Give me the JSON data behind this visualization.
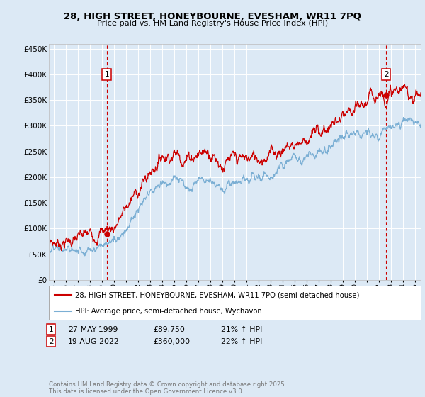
{
  "title_line1": "28, HIGH STREET, HONEYBOURNE, EVESHAM, WR11 7PQ",
  "title_line2": "Price paid vs. HM Land Registry's House Price Index (HPI)",
  "background_color": "#dce9f5",
  "plot_bg_color": "#dce9f5",
  "grid_color": "#ffffff",
  "red_color": "#cc0000",
  "blue_color": "#7bafd4",
  "ylim": [
    0,
    460000
  ],
  "yticks": [
    0,
    50000,
    100000,
    150000,
    200000,
    250000,
    300000,
    350000,
    400000,
    450000
  ],
  "ytick_labels": [
    "£0",
    "£50K",
    "£100K",
    "£150K",
    "£200K",
    "£250K",
    "£300K",
    "£350K",
    "£400K",
    "£450K"
  ],
  "sale1_x": 1999.41,
  "sale1_y": 89750,
  "sale2_x": 2022.63,
  "sale2_y": 360000,
  "legend_line1": "28, HIGH STREET, HONEYBOURNE, EVESHAM, WR11 7PQ (semi-detached house)",
  "legend_line2": "HPI: Average price, semi-detached house, Wychavon",
  "footer": "Contains HM Land Registry data © Crown copyright and database right 2025.\nThis data is licensed under the Open Government Licence v3.0.",
  "xmin": 1994.6,
  "xmax": 2025.5
}
